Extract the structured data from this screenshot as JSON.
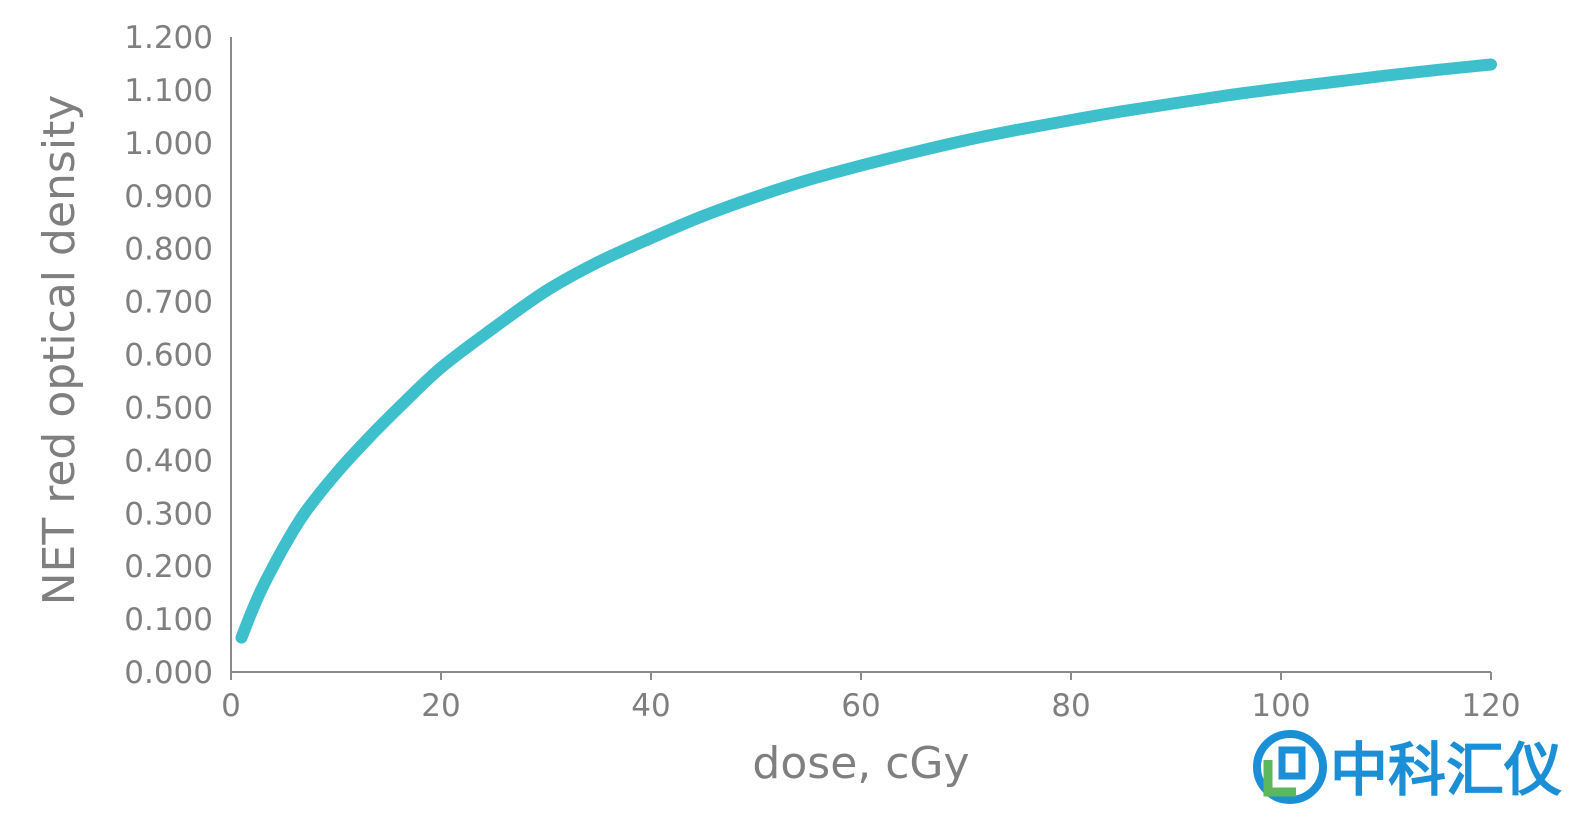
{
  "colors": {
    "series": "#3DBFCC",
    "axis": "#8a8a8a",
    "text": "#7f7f7f",
    "watermark_blue": "#1a8fd6",
    "watermark_green": "#5cb85c"
  },
  "watermark": {
    "text": "中科汇仪"
  },
  "chart_data": {
    "type": "line",
    "xlabel": "dose, cGy",
    "ylabel": "NET red optical density",
    "xlim": [
      0,
      120
    ],
    "ylim": [
      0,
      1.2
    ],
    "x_ticks": [
      0,
      20,
      40,
      60,
      80,
      100,
      120
    ],
    "x_tick_labels": [
      "0",
      "20",
      "40",
      "60",
      "80",
      "100",
      "120"
    ],
    "y_ticks": [
      0,
      0.1,
      0.2,
      0.3,
      0.4,
      0.5,
      0.6,
      0.7,
      0.8,
      0.9,
      1.0,
      1.1,
      1.2
    ],
    "y_tick_labels": [
      "0.000",
      "0.100",
      "0.200",
      "0.300",
      "0.400",
      "0.500",
      "0.600",
      "0.700",
      "0.800",
      "0.900",
      "1.000",
      "1.100",
      "1.200"
    ],
    "grid": false,
    "legend": "none",
    "series": [
      {
        "x": [
          1,
          2,
          3,
          5,
          7,
          10,
          13,
          16,
          20,
          25,
          30,
          35,
          40,
          45,
          50,
          55,
          60,
          65,
          70,
          75,
          80,
          85,
          90,
          95,
          100,
          105,
          110,
          115,
          120
        ],
        "y": [
          0.065,
          0.115,
          0.16,
          0.235,
          0.3,
          0.375,
          0.44,
          0.5,
          0.575,
          0.65,
          0.72,
          0.775,
          0.82,
          0.862,
          0.898,
          0.93,
          0.957,
          0.982,
          1.005,
          1.025,
          1.043,
          1.06,
          1.075,
          1.09,
          1.103,
          1.115,
          1.127,
          1.138,
          1.148
        ]
      }
    ]
  }
}
